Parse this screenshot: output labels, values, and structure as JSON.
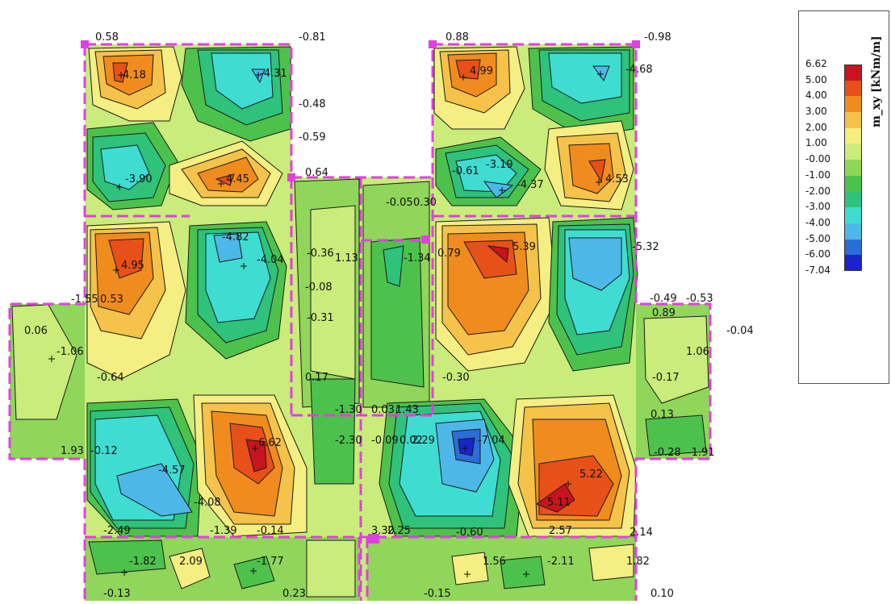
{
  "legend": {
    "title": "m_xy [kNm/m]",
    "labels": [
      "6.62",
      "5.00",
      "4.00",
      "3.00",
      "2.00",
      "1.00",
      "-0.00",
      "-1.00",
      "-2.00",
      "-3.00",
      "-4.00",
      "-5.00",
      "-6.00",
      "-7.04"
    ],
    "colors": [
      "#c8141e",
      "#e8501a",
      "#f08c1e",
      "#f5c24a",
      "#f5ee82",
      "#c9ec7a",
      "#8fd65a",
      "#4cc24c",
      "#2ec27a",
      "#3fdcd2",
      "#4db8e8",
      "#2a6ed8",
      "#1a24c8"
    ]
  },
  "colors": {
    "boundary": "#e040e0",
    "contour": "#1a1a1a"
  },
  "labels": [
    {
      "id": "l1",
      "text": "0.58"
    },
    {
      "id": "l2",
      "text": "-0.81"
    },
    {
      "id": "l3",
      "text": "4.18"
    },
    {
      "id": "l4",
      "text": "-4.31"
    },
    {
      "id": "l5",
      "text": "-0.48"
    },
    {
      "id": "l6",
      "text": "-0.59"
    },
    {
      "id": "l7",
      "text": "-3.90"
    },
    {
      "id": "l8",
      "text": "4.45"
    },
    {
      "id": "l9",
      "text": "0.64"
    },
    {
      "id": "l10",
      "text": "0.88"
    },
    {
      "id": "l11",
      "text": "-0.98"
    },
    {
      "id": "l12",
      "text": "4.99"
    },
    {
      "id": "l13",
      "text": "-4.68"
    },
    {
      "id": "l14",
      "text": "-0.61"
    },
    {
      "id": "l15",
      "text": "-3.19"
    },
    {
      "id": "l16",
      "text": "-4.37"
    },
    {
      "id": "l17",
      "text": "4.53"
    },
    {
      "id": "l18",
      "text": "-0.05"
    },
    {
      "id": "l19",
      "text": "0.30"
    },
    {
      "id": "l20",
      "text": "4.95"
    },
    {
      "id": "l21",
      "text": "-4.82"
    },
    {
      "id": "l22",
      "text": "-4.04"
    },
    {
      "id": "l23",
      "text": "-0.36"
    },
    {
      "id": "l24",
      "text": "1.13"
    },
    {
      "id": "l25",
      "text": "-1.34"
    },
    {
      "id": "l26",
      "text": "0.79"
    },
    {
      "id": "l27",
      "text": "5.39"
    },
    {
      "id": "l28",
      "text": "-5.32"
    },
    {
      "id": "l29",
      "text": "-0.08"
    },
    {
      "id": "l30",
      "text": "-0.31"
    },
    {
      "id": "l31",
      "text": "-1.55"
    },
    {
      "id": "l32",
      "text": "0.53"
    },
    {
      "id": "l33",
      "text": "-0.49"
    },
    {
      "id": "l34",
      "text": "-0.53"
    },
    {
      "id": "l35",
      "text": "0.89"
    },
    {
      "id": "l36",
      "text": "0.06"
    },
    {
      "id": "l37",
      "text": "-1.06"
    },
    {
      "id": "l38",
      "text": "-0.04"
    },
    {
      "id": "l39",
      "text": "1.06"
    },
    {
      "id": "l40",
      "text": "-0.64"
    },
    {
      "id": "l41",
      "text": "0.17"
    },
    {
      "id": "l42",
      "text": "-0.30"
    },
    {
      "id": "l43",
      "text": "-0.17"
    },
    {
      "id": "l44",
      "text": "-1.30"
    },
    {
      "id": "l45",
      "text": "0.03"
    },
    {
      "id": "l46",
      "text": "1.43"
    },
    {
      "id": "l47",
      "text": "0.13"
    },
    {
      "id": "l48",
      "text": "1.93"
    },
    {
      "id": "l49",
      "text": "-0.12"
    },
    {
      "id": "l50",
      "text": "6.62"
    },
    {
      "id": "l51",
      "text": "-2.30"
    },
    {
      "id": "l52",
      "text": "-0.09"
    },
    {
      "id": "l53",
      "text": "0.02"
    },
    {
      "id": "l54",
      "text": "2.29"
    },
    {
      "id": "l55",
      "text": "-7.04"
    },
    {
      "id": "l56",
      "text": "-0.28"
    },
    {
      "id": "l57",
      "text": "-1.91"
    },
    {
      "id": "l58",
      "text": "-4.57"
    },
    {
      "id": "l59",
      "text": "-4.08"
    },
    {
      "id": "l60",
      "text": "5.22"
    },
    {
      "id": "l61",
      "text": "5.11"
    },
    {
      "id": "l62",
      "text": "-2.49"
    },
    {
      "id": "l63",
      "text": "-1.39"
    },
    {
      "id": "l64",
      "text": "-0.14"
    },
    {
      "id": "l65",
      "text": "3.30"
    },
    {
      "id": "l66",
      "text": "2.25"
    },
    {
      "id": "l67",
      "text": "-0.60"
    },
    {
      "id": "l68",
      "text": "2.57"
    },
    {
      "id": "l69",
      "text": "2.14"
    },
    {
      "id": "l70",
      "text": "-1.82"
    },
    {
      "id": "l71",
      "text": "2.09"
    },
    {
      "id": "l72",
      "text": "-1.77"
    },
    {
      "id": "l73",
      "text": "1.56"
    },
    {
      "id": "l74",
      "text": "-2.11"
    },
    {
      "id": "l75",
      "text": "1.82"
    },
    {
      "id": "l76",
      "text": "-0.13"
    },
    {
      "id": "l77",
      "text": "0.23"
    },
    {
      "id": "l78",
      "text": "-0.15"
    },
    {
      "id": "l79",
      "text": "0.10"
    }
  ]
}
